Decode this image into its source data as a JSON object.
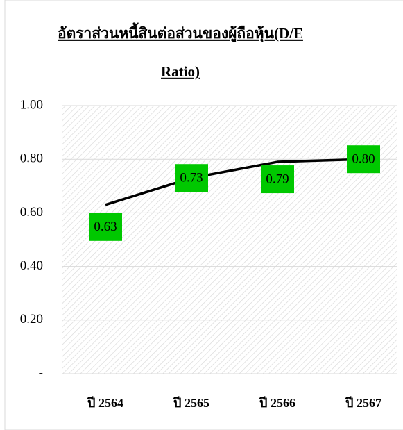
{
  "chart_data": {
    "type": "line",
    "title": [
      "อัตราส่วนหนี้สินต่อส่วนของผู้ถือหุ้น(D/E",
      "Ratio)"
    ],
    "categories": [
      "ปี 2564",
      "ปี 2565",
      "ปี 2566",
      "ปี 2567"
    ],
    "values": [
      0.63,
      0.73,
      0.79,
      0.8
    ],
    "value_labels": [
      "0.63",
      "0.73",
      "0.79",
      "0.80"
    ],
    "color": "#000000",
    "label_color": "#00c800",
    "ylim": [
      0,
      1
    ],
    "yticks": [
      {
        "value": 0,
        "label": "-"
      },
      {
        "value": 0.2,
        "label": "0.20"
      },
      {
        "value": 0.4,
        "label": "0.40"
      },
      {
        "value": 0.6,
        "label": "0.60"
      },
      {
        "value": 0.8,
        "label": "0.80"
      },
      {
        "value": 1,
        "label": "1.00"
      }
    ],
    "grid": true
  }
}
